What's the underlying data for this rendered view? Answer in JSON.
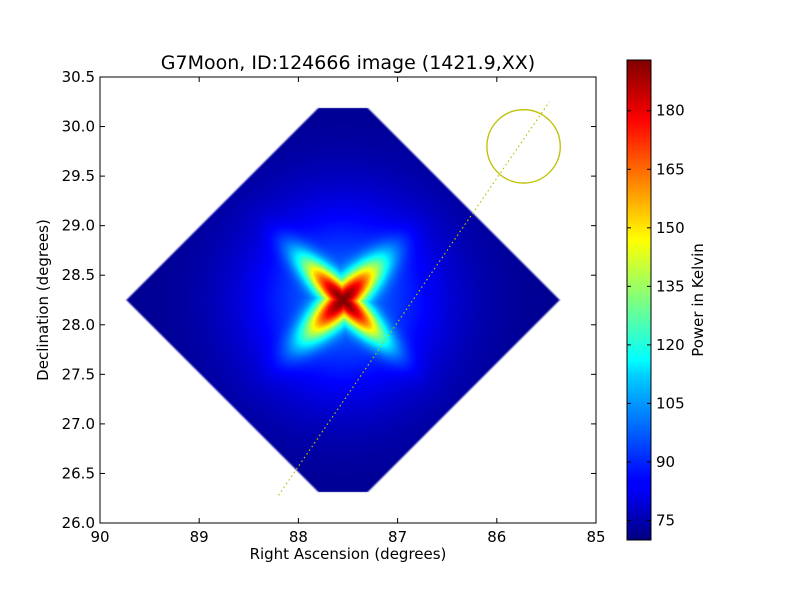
{
  "chart_data": {
    "type": "heatmap",
    "title": "G7Moon, ID:124666 image (1421.9,XX)",
    "xlabel": "Right Ascension (degrees)",
    "ylabel": "Declination (degrees)",
    "xlim": [
      90,
      85
    ],
    "ylim": [
      26.0,
      30.5
    ],
    "x_ticks": [
      "90",
      "89",
      "88",
      "87",
      "86",
      "85"
    ],
    "y_ticks": [
      "26.0",
      "26.5",
      "27.0",
      "27.5",
      "28.0",
      "28.5",
      "29.0",
      "29.5",
      "30.0",
      "30.5"
    ],
    "colorbar": {
      "label": "Power in Kelvin",
      "range": [
        70,
        193
      ],
      "ticks": [
        "75",
        "90",
        "105",
        "120",
        "135",
        "150",
        "165",
        "180"
      ],
      "colormap": "jet"
    },
    "map": {
      "footprint_center": {
        "ra": 87.55,
        "dec": 28.25
      },
      "footprint_half_width_deg": 2.2,
      "peak": {
        "ra": 87.55,
        "dec": 28.25,
        "value": 193
      },
      "background_value": 72
    },
    "beam_circle": {
      "ra": 85.73,
      "dec": 29.8,
      "radius_deg": 0.37,
      "color": "#bfbf00"
    },
    "scan_line": {
      "start": {
        "ra": 88.2,
        "dec": 26.28
      },
      "end": {
        "ra": 85.47,
        "dec": 30.25
      },
      "style": "dotted",
      "color": "#bfbf00"
    }
  }
}
